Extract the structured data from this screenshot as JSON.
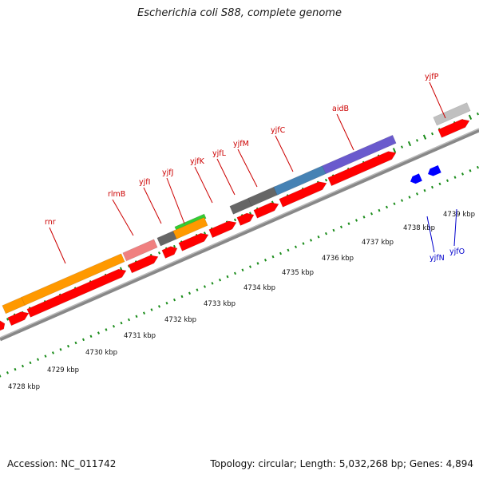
{
  "title": "Escherichia coli S88, complete genome",
  "footer": {
    "accession": "Accession: NC_011742",
    "summary": "Topology: circular; Length: 5,032,268 bp; Genes: 4,894"
  },
  "colors": {
    "cds": "#ff0000",
    "cds_reverse": "#0000ff",
    "gene_label": "#cc0000",
    "gene_label_reverse": "#0000cc",
    "backbone": "#888888",
    "ruler": "#1a8c1a",
    "orange": "#ff9900",
    "pink": "#f08080",
    "gray": "#666666",
    "green": "#33cc33",
    "steelblue": "#4682b4",
    "slateblue": "#6a5acd",
    "silver": "#c0c0c0"
  },
  "ticks": [
    "4728 kbp",
    "4729 kbp",
    "4730 kbp",
    "4731 kbp",
    "4732 kbp",
    "4733 kbp",
    "4734 kbp",
    "4735 kbp",
    "4736 kbp",
    "4737 kbp",
    "4738 kbp",
    "4739 kbp"
  ],
  "genes": [
    {
      "name": "rnr",
      "strand": "+"
    },
    {
      "name": "rlmB",
      "strand": "+"
    },
    {
      "name": "yjfI",
      "strand": "+"
    },
    {
      "name": "yjfJ",
      "strand": "+"
    },
    {
      "name": "yjfK",
      "strand": "+"
    },
    {
      "name": "yjfL",
      "strand": "+"
    },
    {
      "name": "yjfM",
      "strand": "+"
    },
    {
      "name": "yjfC",
      "strand": "+"
    },
    {
      "name": "aidB",
      "strand": "+"
    },
    {
      "name": "yjfN",
      "strand": "-"
    },
    {
      "name": "yjfO",
      "strand": "-"
    },
    {
      "name": "yjfP",
      "strand": "+"
    }
  ]
}
